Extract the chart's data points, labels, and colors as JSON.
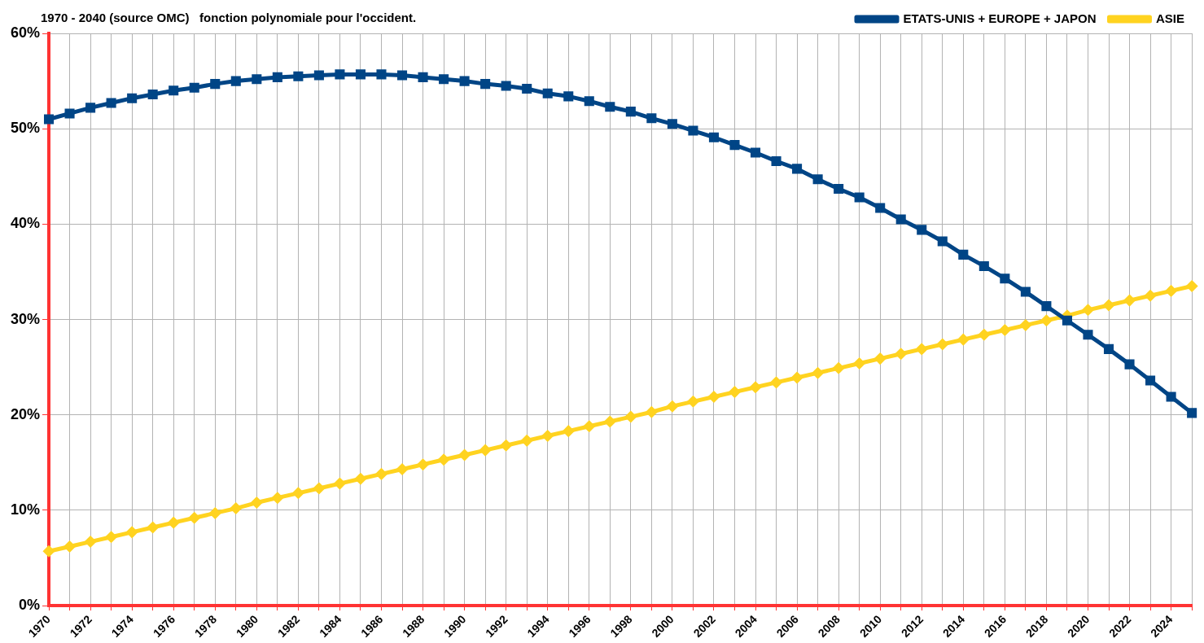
{
  "chart_data": {
    "type": "line",
    "title": "1970 - 2040 (source OMC)   fonction polynomiale pour l'occident.",
    "categories": [
      "1970",
      null,
      "1972",
      null,
      "1974",
      null,
      "1976",
      null,
      "1978",
      null,
      "1980",
      null,
      "1982",
      null,
      "1984",
      null,
      "1986",
      null,
      "1988",
      null,
      "1990",
      null,
      "1992",
      null,
      "1994",
      null,
      "1996",
      null,
      "1998",
      null,
      "2000",
      null,
      "2002",
      null,
      "2004",
      null,
      "2006",
      null,
      "2008",
      null,
      "2010",
      null,
      "2012",
      null,
      "2014",
      null,
      "2016",
      null,
      "2018",
      null,
      "2020",
      null,
      "2022",
      null,
      "2024",
      null
    ],
    "series": [
      {
        "name": "ETATS-UNIS + EUROPE + JAPON",
        "color": "#004586",
        "marker": "square",
        "values": [
          51.0,
          51.6,
          52.2,
          52.7,
          53.2,
          53.6,
          54.0,
          54.3,
          54.7,
          55.0,
          55.2,
          55.4,
          55.5,
          55.6,
          55.7,
          55.7,
          55.7,
          55.6,
          55.4,
          55.2,
          55.0,
          54.7,
          54.5,
          54.2,
          53.7,
          53.4,
          52.9,
          52.3,
          51.8,
          51.1,
          50.5,
          49.8,
          49.1,
          48.3,
          47.5,
          46.6,
          45.8,
          44.7,
          43.7,
          42.8,
          41.7,
          40.5,
          39.4,
          38.2,
          36.8,
          35.6,
          34.3,
          32.9,
          31.4,
          29.9,
          28.4,
          26.9,
          25.3,
          23.6,
          21.9,
          20.2
        ]
      },
      {
        "name": "ASIE",
        "color": "#ffd320",
        "marker": "diamond",
        "values": [
          5.7,
          6.2,
          6.7,
          7.2,
          7.7,
          8.2,
          8.7,
          9.2,
          9.7,
          10.2,
          10.8,
          11.3,
          11.8,
          12.3,
          12.8,
          13.3,
          13.8,
          14.3,
          14.8,
          15.3,
          15.8,
          16.3,
          16.8,
          17.3,
          17.8,
          18.3,
          18.8,
          19.3,
          19.8,
          20.3,
          20.9,
          21.4,
          21.9,
          22.4,
          22.9,
          23.4,
          23.9,
          24.4,
          24.9,
          25.4,
          25.9,
          26.4,
          26.9,
          27.4,
          27.9,
          28.4,
          28.9,
          29.4,
          29.9,
          30.4,
          31.0,
          31.5,
          32.0,
          32.5,
          33.0,
          33.5
        ]
      }
    ],
    "ylim": [
      0,
      60
    ],
    "yticks": [
      {
        "value": 0,
        "label": "0%"
      },
      {
        "value": 10,
        "label": "10%"
      },
      {
        "value": 20,
        "label": "20%"
      },
      {
        "value": 30,
        "label": "30%"
      },
      {
        "value": 40,
        "label": "40%"
      },
      {
        "value": 50,
        "label": "50%"
      },
      {
        "value": 60,
        "label": "60%"
      }
    ],
    "grid": true,
    "legend": "top right",
    "line_style": "solid"
  }
}
